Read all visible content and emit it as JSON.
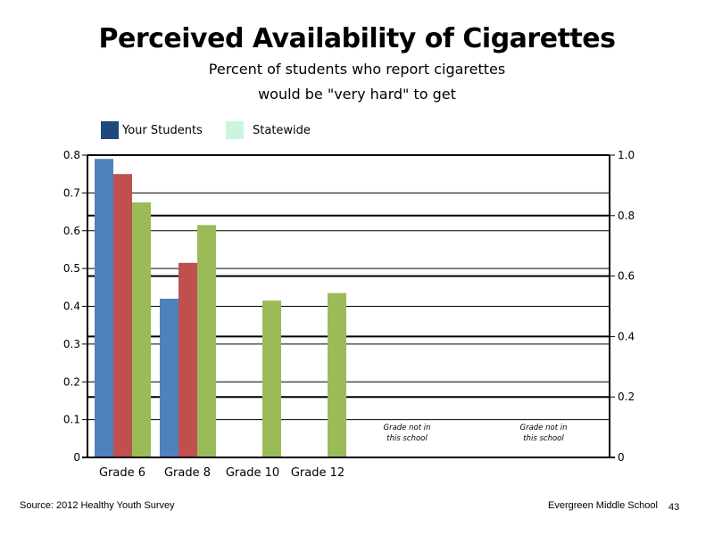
{
  "chart_data": {
    "type": "bar",
    "title": "Perceived Availability of Cigarettes",
    "subtitle": [
      "Percent of students who report cigarettes",
      "would be \"very hard\" to get"
    ],
    "categories": [
      "Grade 6",
      "Grade 8",
      "Grade 10",
      "Grade 12"
    ],
    "series": [
      {
        "values": [
          0.79,
          0.42,
          null,
          null
        ],
        "color": "#4f81bd"
      },
      {
        "values": [
          0.75,
          0.515,
          null,
          null
        ],
        "color": "#c0504d"
      },
      {
        "values": [
          0.675,
          0.615,
          0.415,
          0.435
        ],
        "color": "#9bbb59"
      }
    ],
    "legend": [
      {
        "label": "Your Students",
        "color": "#1f497d"
      },
      {
        "label": "Statewide",
        "color": "#ccf5dd"
      }
    ],
    "left_axis": {
      "ylim": [
        0,
        0.8
      ],
      "ticks": [
        "0",
        "0.1",
        "0.2",
        "0.3",
        "0.4",
        "0.5",
        "0.6",
        "0.7",
        "0.8"
      ]
    },
    "right_axis": {
      "ylim": [
        0,
        1.0
      ],
      "ticks": [
        "0",
        "0.2",
        "0.4",
        "0.6",
        "0.8",
        "1.0"
      ]
    },
    "notes": [
      "Grade not in this school",
      "Grade not in this school"
    ],
    "grid": true
  },
  "footer": {
    "source": "Source: 2012 Healthy Youth Survey",
    "school": "Evergreen Middle School",
    "page": "43"
  }
}
